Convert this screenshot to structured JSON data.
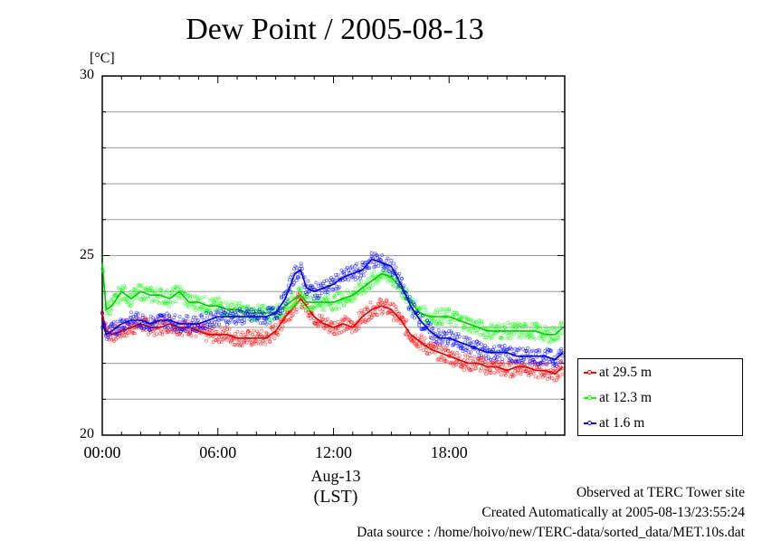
{
  "chart_data": {
    "type": "line",
    "title": "Dew Point / 2005-08-13",
    "ylabel": "[°C]",
    "xlabel": "(LST)",
    "date_label": "Aug-13",
    "ylim": [
      20,
      30
    ],
    "y_major_ticks": [
      20,
      25,
      30
    ],
    "y_minor_step": 1,
    "xlim": [
      0,
      24
    ],
    "x_ticks": [
      {
        "hour": 0,
        "label": "00:00"
      },
      {
        "hour": 6,
        "label": "06:00"
      },
      {
        "hour": 12,
        "label": "12:00"
      },
      {
        "hour": 18,
        "label": "18:00"
      }
    ],
    "grid": true,
    "legend_position": "right-bottom",
    "series": [
      {
        "name": "at 29.5 m",
        "color": "#ff0000",
        "x": [
          0,
          0.2,
          0.5,
          1.0,
          1.5,
          2.0,
          2.5,
          3.0,
          3.5,
          4.0,
          4.5,
          5.0,
          5.5,
          6.0,
          6.5,
          7.0,
          7.5,
          8.0,
          8.5,
          9.0,
          9.5,
          10.0,
          10.3,
          10.6,
          11.0,
          11.5,
          12.0,
          12.5,
          13.0,
          13.5,
          14.0,
          14.5,
          15.0,
          15.5,
          16.0,
          16.5,
          17.0,
          17.5,
          18.0,
          18.5,
          19.0,
          19.5,
          20.0,
          20.5,
          21.0,
          21.5,
          22.0,
          22.5,
          23.0,
          23.5,
          23.9
        ],
        "y": [
          23.4,
          22.9,
          22.8,
          22.9,
          23.0,
          23.1,
          23.0,
          23.0,
          23.1,
          23.0,
          23.0,
          22.9,
          22.8,
          22.8,
          22.8,
          22.7,
          22.7,
          22.7,
          22.7,
          22.9,
          23.3,
          23.6,
          23.8,
          23.6,
          23.3,
          23.1,
          23.0,
          23.1,
          23.0,
          23.3,
          23.5,
          23.6,
          23.5,
          23.2,
          22.8,
          22.6,
          22.4,
          22.3,
          22.2,
          22.1,
          22.0,
          22.0,
          21.9,
          21.9,
          21.8,
          21.9,
          21.9,
          21.8,
          21.8,
          21.7,
          21.9
        ]
      },
      {
        "name": "at 12.3 m",
        "color": "#00ff00",
        "x": [
          0,
          0.2,
          0.5,
          1.0,
          1.5,
          2.0,
          2.5,
          3.0,
          3.5,
          4.0,
          4.5,
          5.0,
          5.5,
          6.0,
          6.5,
          7.0,
          7.5,
          8.0,
          8.5,
          9.0,
          9.5,
          10.0,
          10.3,
          10.6,
          11.0,
          11.5,
          12.0,
          12.5,
          13.0,
          13.5,
          14.0,
          14.5,
          15.0,
          15.5,
          16.0,
          16.5,
          17.0,
          17.5,
          18.0,
          18.5,
          19.0,
          19.5,
          20.0,
          20.5,
          21.0,
          21.5,
          22.0,
          22.5,
          23.0,
          23.5,
          23.9
        ],
        "y": [
          24.8,
          23.5,
          23.6,
          24.0,
          23.8,
          24.0,
          23.9,
          23.9,
          23.8,
          24.0,
          23.7,
          23.7,
          23.6,
          23.6,
          23.5,
          23.5,
          23.4,
          23.4,
          23.4,
          23.4,
          23.6,
          23.8,
          23.9,
          23.7,
          23.7,
          23.7,
          23.7,
          23.8,
          23.9,
          24.1,
          24.3,
          24.5,
          24.4,
          24.1,
          23.7,
          23.4,
          23.3,
          23.3,
          23.3,
          23.2,
          23.1,
          23.0,
          22.9,
          22.9,
          22.9,
          22.9,
          22.9,
          22.9,
          22.8,
          22.8,
          23.0
        ]
      },
      {
        "name": "at 1.6 m",
        "color": "#0000ff",
        "x": [
          0,
          0.2,
          0.5,
          1.0,
          1.5,
          2.0,
          2.5,
          3.0,
          3.5,
          4.0,
          4.5,
          5.0,
          5.5,
          6.0,
          6.5,
          7.0,
          7.5,
          8.0,
          8.5,
          9.0,
          9.5,
          10.0,
          10.3,
          10.6,
          11.0,
          11.5,
          12.0,
          12.5,
          13.0,
          13.5,
          14.0,
          14.5,
          15.0,
          15.5,
          16.0,
          16.5,
          17.0,
          17.5,
          18.0,
          18.5,
          19.0,
          19.5,
          20.0,
          20.5,
          21.0,
          21.5,
          22.0,
          22.5,
          23.0,
          23.5,
          23.9
        ],
        "y": [
          23.2,
          22.8,
          22.9,
          23.1,
          23.2,
          23.2,
          23.1,
          23.2,
          23.2,
          23.1,
          23.1,
          23.1,
          23.2,
          23.3,
          23.3,
          23.3,
          23.3,
          23.3,
          23.3,
          23.4,
          23.8,
          24.5,
          24.6,
          24.1,
          24.0,
          24.1,
          24.2,
          24.4,
          24.5,
          24.6,
          24.9,
          24.8,
          24.7,
          24.2,
          23.6,
          23.2,
          22.9,
          22.7,
          22.7,
          22.6,
          22.5,
          22.4,
          22.3,
          22.3,
          22.3,
          22.2,
          22.2,
          22.2,
          22.2,
          22.1,
          22.3
        ]
      }
    ]
  },
  "footer": {
    "line1": "Observed at TERC Tower site",
    "line2": "Created Automatically at 2005-08-13/23:55:24",
    "line3": "Data source : /home/hoivo/new/TERC-data/sorted_data/MET.10s.dat"
  }
}
